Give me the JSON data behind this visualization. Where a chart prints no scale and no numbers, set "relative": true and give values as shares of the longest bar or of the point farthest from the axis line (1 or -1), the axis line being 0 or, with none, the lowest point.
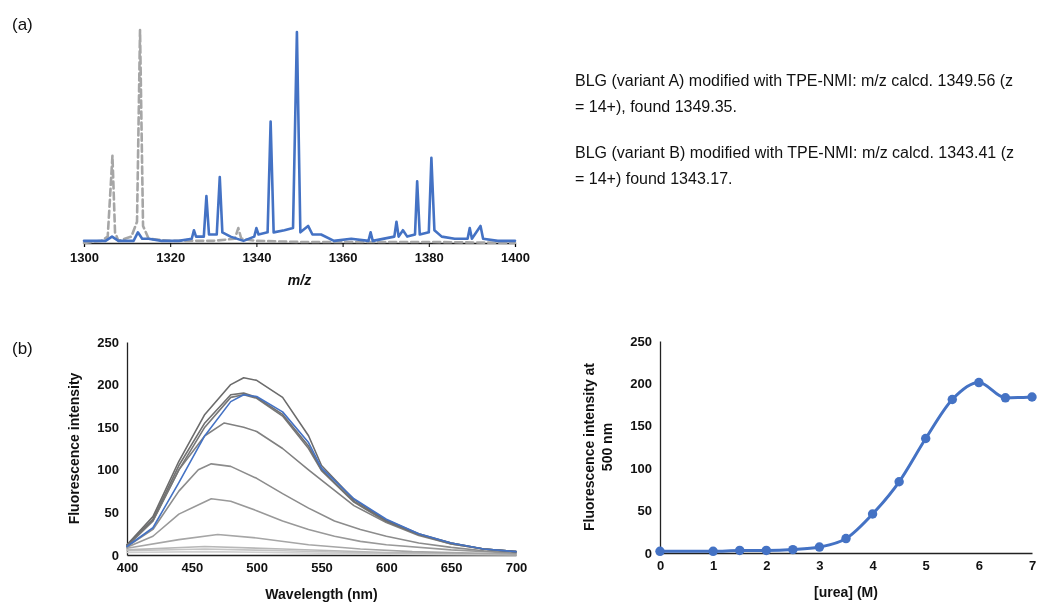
{
  "chart_data": [
    {
      "type": "line",
      "relative": true,
      "xlabel": "m/z",
      "xlim": [
        1300,
        1400
      ],
      "xticks": [
        1300,
        1320,
        1340,
        1360,
        1380,
        1400
      ],
      "annotations": [
        "(a)"
      ],
      "series": [
        {
          "color": "#a6a6a6",
          "line_style": "dashed",
          "x": [
            1300,
            1304,
            1305.5,
            1306,
            1306.6,
            1307.2,
            1308,
            1311,
            1312.3,
            1313,
            1313.7,
            1315,
            1320,
            1330,
            1335,
            1335.8,
            1336.5,
            1340,
            1350,
            1380,
            1400
          ],
          "values": [
            0,
            0.01,
            0.03,
            0.2,
            0.41,
            0.05,
            0.01,
            0.03,
            0.1,
            1,
            0.08,
            0.02,
            0.01,
            0.01,
            0.02,
            0.07,
            0.02,
            0.01,
            0.005,
            0.005,
            0
          ]
        },
        {
          "color": "#4472c4",
          "line_style": "solid",
          "x": [
            1300,
            1305,
            1306.5,
            1308,
            1311.5,
            1312.5,
            1313.5,
            1315,
            1318,
            1322,
            1325,
            1325.5,
            1326,
            1327.8,
            1328.4,
            1329,
            1330.8,
            1331.5,
            1332.1,
            1334,
            1337,
            1339.5,
            1340,
            1340.5,
            1342.6,
            1343.3,
            1344,
            1346.5,
            1348.5,
            1349.4,
            1350.2,
            1352,
            1353,
            1355,
            1358,
            1362,
            1366,
            1366.5,
            1367,
            1372,
            1372.5,
            1373,
            1374,
            1375,
            1376.8,
            1377.3,
            1377.9,
            1380,
            1380.6,
            1381.3,
            1383,
            1386,
            1389,
            1389.5,
            1390,
            1392,
            1392.6,
            1396,
            1400
          ],
          "values": [
            0.01,
            0.01,
            0.03,
            0.01,
            0.01,
            0.05,
            0.02,
            0.02,
            0.01,
            0.01,
            0.02,
            0.06,
            0.03,
            0.03,
            0.22,
            0.04,
            0.04,
            0.31,
            0.05,
            0.03,
            0.01,
            0.03,
            0.07,
            0.04,
            0.05,
            0.57,
            0.05,
            0.06,
            0.07,
            0.99,
            0.05,
            0.08,
            0.04,
            0.04,
            0.01,
            0.02,
            0.01,
            0.05,
            0.01,
            0.03,
            0.1,
            0.03,
            0.06,
            0.03,
            0.04,
            0.29,
            0.04,
            0.05,
            0.4,
            0.06,
            0.03,
            0.02,
            0.02,
            0.07,
            0.02,
            0.08,
            0.02,
            0.01,
            0.01
          ]
        }
      ]
    },
    {
      "type": "line",
      "xlabel": "Wavelength (nm)",
      "ylabel": "Fluorescence intensity",
      "xlim": [
        400,
        700
      ],
      "xticks": [
        400,
        450,
        500,
        550,
        600,
        650,
        700
      ],
      "ylim": [
        0,
        250
      ],
      "yticks": [
        0,
        50,
        100,
        150,
        200,
        250
      ],
      "annotations": [
        "(b)"
      ],
      "series": [
        {
          "color": "#d0d0d0",
          "x": [
            400,
            460,
            600,
            700
          ],
          "values": [
            3,
            4,
            1,
            0
          ]
        },
        {
          "color": "#c4c4c4",
          "x": [
            400,
            460,
            520,
            600,
            700
          ],
          "values": [
            5,
            7,
            5,
            2,
            1
          ]
        },
        {
          "color": "#b8b8b8",
          "x": [
            400,
            460,
            520,
            600,
            700
          ],
          "values": [
            6,
            10,
            7,
            3,
            1
          ]
        },
        {
          "color": "#a6a6a6",
          "x": [
            400,
            440,
            470,
            500,
            540,
            580,
            620,
            700
          ],
          "values": [
            8,
            18,
            24,
            20,
            12,
            7,
            4,
            1
          ]
        },
        {
          "color": "#999999",
          "x": [
            400,
            420,
            440,
            465,
            480,
            500,
            520,
            540,
            560,
            580,
            600,
            650,
            700
          ],
          "values": [
            9,
            22,
            48,
            66,
            63,
            52,
            40,
            30,
            22,
            16,
            12,
            6,
            2
          ]
        },
        {
          "color": "#8c8c8c",
          "x": [
            400,
            420,
            440,
            455,
            465,
            480,
            500,
            520,
            540,
            560,
            580,
            600,
            625,
            650,
            675,
            700
          ],
          "values": [
            10,
            30,
            75,
            100,
            107,
            104,
            90,
            72,
            55,
            40,
            30,
            22,
            14,
            9,
            5,
            3
          ]
        },
        {
          "color": "#808080",
          "x": [
            400,
            420,
            440,
            460,
            475,
            490,
            500,
            520,
            540,
            550,
            575,
            600,
            625,
            650,
            675,
            700
          ],
          "values": [
            10,
            40,
            100,
            140,
            155,
            150,
            145,
            125,
            100,
            88,
            58,
            38,
            23,
            13,
            7,
            4
          ]
        },
        {
          "color": "#777777",
          "x": [
            400,
            420,
            440,
            460,
            480,
            490,
            500,
            520,
            540,
            550,
            575,
            600,
            625,
            650,
            675,
            700
          ],
          "values": [
            11,
            40,
            100,
            150,
            185,
            188,
            184,
            163,
            125,
            99,
            62,
            39,
            24,
            13,
            7,
            4
          ]
        },
        {
          "color": "#707070",
          "x": [
            400,
            420,
            440,
            460,
            480,
            490,
            500,
            520,
            540,
            550,
            575,
            600,
            625,
            650,
            675,
            700
          ],
          "values": [
            12,
            42,
            105,
            155,
            188,
            190,
            185,
            165,
            128,
            100,
            63,
            40,
            24,
            14,
            7,
            4
          ]
        },
        {
          "color": "#6b6b6b",
          "x": [
            400,
            420,
            440,
            460,
            480,
            490,
            500,
            520,
            540,
            550,
            575,
            600,
            625,
            650,
            675,
            700
          ],
          "values": [
            12,
            45,
            110,
            165,
            200,
            208,
            205,
            185,
            140,
            105,
            65,
            41,
            25,
            14,
            7,
            4
          ]
        },
        {
          "color": "#4472c4",
          "x": [
            400,
            420,
            440,
            460,
            480,
            490,
            500,
            520,
            540,
            550,
            575,
            600,
            625,
            650,
            675,
            700
          ],
          "values": [
            10,
            32,
            85,
            140,
            180,
            188,
            186,
            168,
            132,
            102,
            66,
            42,
            25,
            14,
            7,
            4
          ]
        }
      ]
    },
    {
      "type": "line",
      "marker": "circle",
      "xlabel": "[urea] (M)",
      "ylabel": "Fluorescence intensity at 500 nm",
      "xlim": [
        0,
        7
      ],
      "xticks": [
        0,
        1,
        2,
        3,
        4,
        5,
        6,
        7
      ],
      "ylim": [
        0,
        250
      ],
      "yticks": [
        0,
        50,
        100,
        150,
        200,
        250
      ],
      "x": [
        0,
        1,
        1.5,
        2,
        2.5,
        3,
        3.5,
        4,
        4.5,
        5,
        5.5,
        6,
        6.5,
        7
      ],
      "series": [
        {
          "color": "#4472c4",
          "values": [
            2,
            2,
            3,
            3,
            4,
            7,
            17,
            46,
            84,
            135,
            181,
            201,
            183,
            184
          ]
        }
      ]
    },
    {
      "type": "other",
      "annotations": [
        "BLG (variant A) modified with TPE-NMI: m/z calcd. 1349.56 (z = 14+), found 1349.35.",
        "BLG (variant B) modified with TPE-NMI: m/z calcd. 1343.41 (z = 14+) found 1343.17."
      ]
    }
  ]
}
